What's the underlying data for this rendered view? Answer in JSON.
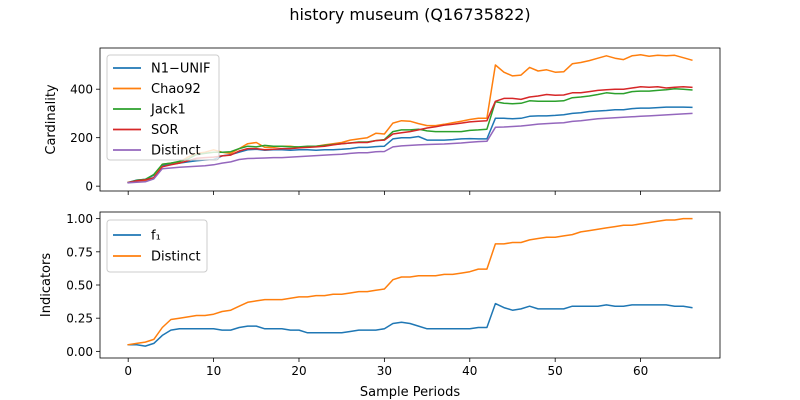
{
  "figure": {
    "title": "history museum (Q16735822)"
  },
  "chart_data": [
    {
      "type": "line",
      "ylabel": "Cardinality",
      "xlabel": "",
      "xlim": [
        -3.3,
        69.3
      ],
      "ylim": [
        -20,
        570
      ],
      "xticks": [
        0,
        10,
        20,
        30,
        40,
        50,
        60
      ],
      "yticks": [
        0,
        200,
        400
      ],
      "tick_labels_x_visible": false,
      "legend": "upper-left",
      "x": [
        0,
        1,
        2,
        3,
        4,
        5,
        6,
        7,
        8,
        9,
        10,
        11,
        12,
        13,
        14,
        15,
        16,
        17,
        18,
        19,
        20,
        21,
        22,
        23,
        24,
        25,
        26,
        27,
        28,
        29,
        30,
        31,
        32,
        33,
        34,
        35,
        36,
        37,
        38,
        39,
        40,
        41,
        42,
        43,
        44,
        45,
        46,
        47,
        48,
        49,
        50,
        51,
        52,
        53,
        54,
        55,
        56,
        57,
        58,
        59,
        60,
        61,
        62,
        63,
        64,
        65,
        66
      ],
      "series": [
        {
          "name": "N1−UNIF",
          "color": "#1f77b4",
          "values": [
            15,
            25,
            28,
            45,
            85,
            90,
            95,
            100,
            105,
            108,
            110,
            125,
            130,
            140,
            150,
            152,
            148,
            150,
            150,
            148,
            150,
            150,
            148,
            150,
            150,
            152,
            155,
            160,
            160,
            163,
            165,
            195,
            200,
            200,
            205,
            190,
            190,
            190,
            192,
            195,
            196,
            195,
            195,
            280,
            280,
            278,
            280,
            288,
            290,
            290,
            292,
            295,
            300,
            303,
            308,
            310,
            312,
            315,
            315,
            320,
            322,
            322,
            324,
            326,
            326,
            326,
            325
          ]
        },
        {
          "name": "Chao92",
          "color": "#ff7f0e",
          "values": [
            15,
            20,
            22,
            35,
            90,
            95,
            100,
            120,
            135,
            140,
            150,
            140,
            135,
            155,
            175,
            180,
            160,
            160,
            165,
            165,
            160,
            162,
            165,
            170,
            175,
            180,
            190,
            195,
            200,
            218,
            215,
            260,
            270,
            268,
            258,
            250,
            250,
            255,
            262,
            268,
            275,
            280,
            280,
            500,
            470,
            455,
            458,
            490,
            475,
            480,
            470,
            472,
            505,
            510,
            518,
            528,
            538,
            528,
            522,
            538,
            542,
            536,
            540,
            538,
            540,
            530,
            520
          ]
        },
        {
          "name": "Jack1",
          "color": "#2ca02c",
          "values": [
            15,
            24,
            28,
            48,
            90,
            95,
            102,
            112,
            130,
            135,
            140,
            140,
            142,
            155,
            165,
            162,
            168,
            165,
            165,
            162,
            162,
            165,
            165,
            168,
            172,
            175,
            178,
            182,
            182,
            188,
            192,
            225,
            232,
            232,
            235,
            228,
            225,
            225,
            225,
            225,
            230,
            232,
            235,
            348,
            342,
            340,
            342,
            352,
            350,
            350,
            350,
            352,
            365,
            368,
            372,
            378,
            385,
            382,
            382,
            390,
            392,
            392,
            395,
            398,
            402,
            400,
            397
          ]
        },
        {
          "name": "SOR",
          "color": "#d62728",
          "values": [
            15,
            22,
            26,
            35,
            80,
            88,
            95,
            105,
            115,
            118,
            120,
            125,
            128,
            145,
            155,
            155,
            150,
            152,
            155,
            155,
            158,
            160,
            162,
            165,
            170,
            175,
            178,
            180,
            180,
            188,
            190,
            215,
            220,
            225,
            232,
            240,
            245,
            252,
            255,
            260,
            265,
            268,
            270,
            350,
            362,
            362,
            358,
            368,
            372,
            378,
            375,
            376,
            385,
            385,
            390,
            395,
            398,
            400,
            400,
            405,
            410,
            408,
            410,
            405,
            408,
            410,
            408
          ]
        },
        {
          "name": "Distinct",
          "color": "#9467bd",
          "values": [
            14,
            16,
            18,
            30,
            72,
            75,
            78,
            80,
            82,
            84,
            88,
            95,
            100,
            110,
            114,
            115,
            116,
            118,
            118,
            120,
            122,
            124,
            126,
            128,
            130,
            132,
            135,
            138,
            138,
            142,
            143,
            162,
            166,
            168,
            170,
            172,
            173,
            174,
            176,
            178,
            181,
            184,
            185,
            243,
            244,
            246,
            248,
            252,
            256,
            258,
            260,
            262,
            267,
            270,
            274,
            278,
            280,
            282,
            284,
            286,
            288,
            290,
            292,
            294,
            296,
            298,
            300
          ]
        }
      ]
    },
    {
      "type": "line",
      "ylabel": "Indicators",
      "xlabel": "Sample Periods",
      "xlim": [
        -3.3,
        69.3
      ],
      "ylim": [
        -0.05,
        1.05
      ],
      "xticks": [
        0,
        10,
        20,
        30,
        40,
        50,
        60
      ],
      "yticks": [
        0.0,
        0.25,
        0.5,
        0.75,
        1.0
      ],
      "tick_labels_y": [
        "0.00",
        "0.25",
        "0.50",
        "0.75",
        "1.00"
      ],
      "legend": "upper-left",
      "x": [
        0,
        1,
        2,
        3,
        4,
        5,
        6,
        7,
        8,
        9,
        10,
        11,
        12,
        13,
        14,
        15,
        16,
        17,
        18,
        19,
        20,
        21,
        22,
        23,
        24,
        25,
        26,
        27,
        28,
        29,
        30,
        31,
        32,
        33,
        34,
        35,
        36,
        37,
        38,
        39,
        40,
        41,
        42,
        43,
        44,
        45,
        46,
        47,
        48,
        49,
        50,
        51,
        52,
        53,
        54,
        55,
        56,
        57,
        58,
        59,
        60,
        61,
        62,
        63,
        64,
        65,
        66
      ],
      "series": [
        {
          "name": "f₁",
          "color": "#1f77b4",
          "values": [
            0.05,
            0.05,
            0.04,
            0.06,
            0.12,
            0.16,
            0.17,
            0.17,
            0.17,
            0.17,
            0.17,
            0.16,
            0.16,
            0.18,
            0.19,
            0.19,
            0.17,
            0.17,
            0.17,
            0.16,
            0.16,
            0.14,
            0.14,
            0.14,
            0.14,
            0.14,
            0.15,
            0.16,
            0.16,
            0.16,
            0.17,
            0.21,
            0.22,
            0.21,
            0.19,
            0.17,
            0.17,
            0.17,
            0.17,
            0.17,
            0.17,
            0.18,
            0.18,
            0.36,
            0.33,
            0.31,
            0.32,
            0.34,
            0.32,
            0.32,
            0.32,
            0.32,
            0.34,
            0.34,
            0.34,
            0.34,
            0.35,
            0.34,
            0.34,
            0.35,
            0.35,
            0.35,
            0.35,
            0.35,
            0.34,
            0.34,
            0.33
          ]
        },
        {
          "name": "Distinct",
          "color": "#ff7f0e",
          "values": [
            0.05,
            0.06,
            0.07,
            0.09,
            0.18,
            0.24,
            0.25,
            0.26,
            0.27,
            0.27,
            0.28,
            0.3,
            0.31,
            0.34,
            0.37,
            0.38,
            0.39,
            0.39,
            0.39,
            0.4,
            0.41,
            0.41,
            0.42,
            0.42,
            0.43,
            0.43,
            0.44,
            0.45,
            0.45,
            0.46,
            0.47,
            0.54,
            0.56,
            0.56,
            0.57,
            0.57,
            0.57,
            0.58,
            0.58,
            0.59,
            0.6,
            0.62,
            0.62,
            0.81,
            0.81,
            0.82,
            0.82,
            0.84,
            0.85,
            0.86,
            0.86,
            0.87,
            0.88,
            0.9,
            0.91,
            0.92,
            0.93,
            0.94,
            0.95,
            0.95,
            0.96,
            0.97,
            0.98,
            0.99,
            0.99,
            1.0,
            1.0
          ]
        }
      ]
    }
  ]
}
